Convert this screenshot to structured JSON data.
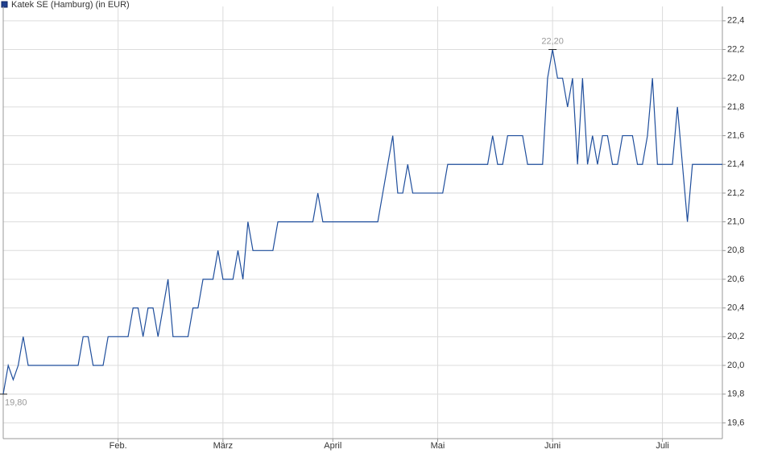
{
  "chart_data": {
    "type": "line",
    "title": "Katek SE (Hamburg) (in EUR)",
    "categories": [
      null,
      null,
      null,
      null,
      null,
      null,
      null,
      null,
      null,
      null,
      null,
      null,
      null,
      null,
      null,
      null,
      null,
      null,
      null,
      null,
      null,
      null,
      null,
      "Feb.",
      null,
      null,
      null,
      null,
      null,
      null,
      null,
      null,
      null,
      null,
      null,
      null,
      null,
      null,
      null,
      null,
      null,
      null,
      null,
      null,
      "März",
      null,
      null,
      null,
      null,
      null,
      null,
      null,
      null,
      null,
      null,
      null,
      null,
      null,
      null,
      null,
      null,
      null,
      null,
      null,
      null,
      null,
      "April",
      null,
      null,
      null,
      null,
      null,
      null,
      null,
      null,
      null,
      null,
      null,
      null,
      null,
      null,
      null,
      null,
      null,
      null,
      null,
      null,
      "Mai",
      null,
      null,
      null,
      null,
      null,
      null,
      null,
      null,
      null,
      null,
      null,
      null,
      null,
      null,
      null,
      null,
      null,
      null,
      null,
      null,
      null,
      null,
      "Juni",
      null,
      null,
      null,
      null,
      null,
      null,
      null,
      null,
      null,
      null,
      null,
      null,
      null,
      null,
      null,
      null,
      null,
      null,
      null,
      null,
      null,
      "Juli",
      null,
      null,
      null,
      null,
      null,
      null,
      null,
      null,
      null,
      null,
      null,
      null
    ],
    "series": [
      {
        "name": "Katek SE (Hamburg)",
        "color": "#1f4e9c",
        "values": [
          19.8,
          20.0,
          19.9,
          20.0,
          20.2,
          20.0,
          20.0,
          20.0,
          20.0,
          20.0,
          20.0,
          20.0,
          20.0,
          20.0,
          20.0,
          20.0,
          20.2,
          20.2,
          20.0,
          20.0,
          20.0,
          20.2,
          20.2,
          20.2,
          20.2,
          20.2,
          20.4,
          20.4,
          20.2,
          20.4,
          20.4,
          20.2,
          20.4,
          20.6,
          20.2,
          20.2,
          20.2,
          20.2,
          20.4,
          20.4,
          20.6,
          20.6,
          20.6,
          20.8,
          20.6,
          20.6,
          20.6,
          20.8,
          20.6,
          21.0,
          20.8,
          20.8,
          20.8,
          20.8,
          20.8,
          21.0,
          21.0,
          21.0,
          21.0,
          21.0,
          21.0,
          21.0,
          21.0,
          21.2,
          21.0,
          21.0,
          21.0,
          21.0,
          21.0,
          21.0,
          21.0,
          21.0,
          21.0,
          21.0,
          21.0,
          21.0,
          21.2,
          21.4,
          21.6,
          21.2,
          21.2,
          21.4,
          21.2,
          21.2,
          21.2,
          21.2,
          21.2,
          21.2,
          21.2,
          21.4,
          21.4,
          21.4,
          21.4,
          21.4,
          21.4,
          21.4,
          21.4,
          21.4,
          21.6,
          21.4,
          21.4,
          21.6,
          21.6,
          21.6,
          21.6,
          21.4,
          21.4,
          21.4,
          21.4,
          22.0,
          22.2,
          22.0,
          22.0,
          21.8,
          22.0,
          21.4,
          22.0,
          21.4,
          21.6,
          21.4,
          21.6,
          21.6,
          21.4,
          21.4,
          21.6,
          21.6,
          21.6,
          21.4,
          21.4,
          21.6,
          22.0,
          21.4,
          21.4,
          21.4,
          21.4,
          21.8,
          21.4,
          21.0,
          21.4,
          21.4,
          21.4,
          21.4,
          21.4,
          21.4,
          21.4
        ],
        "value_labels": [
          "19,80",
          null,
          null,
          null,
          null,
          null,
          null,
          null,
          null,
          null,
          null,
          null,
          null,
          null,
          null,
          null,
          null,
          null,
          null,
          null,
          null,
          null,
          null,
          null,
          null,
          null,
          null,
          null,
          null,
          null,
          null,
          null,
          null,
          null,
          null,
          null,
          null,
          null,
          null,
          null,
          null,
          null,
          null,
          null,
          null,
          null,
          null,
          null,
          null,
          null,
          null,
          null,
          null,
          null,
          null,
          null,
          null,
          null,
          null,
          null,
          null,
          null,
          null,
          null,
          null,
          null,
          null,
          null,
          null,
          null,
          null,
          null,
          null,
          null,
          null,
          null,
          null,
          null,
          null,
          null,
          null,
          null,
          null,
          null,
          null,
          null,
          null,
          null,
          null,
          null,
          null,
          null,
          null,
          null,
          null,
          null,
          null,
          null,
          null,
          null,
          null,
          null,
          null,
          null,
          null,
          null,
          null,
          null,
          null,
          null,
          "22,20",
          null,
          null,
          null,
          null,
          null,
          null,
          null,
          null,
          null,
          null,
          null,
          null,
          null,
          null,
          null,
          null,
          null,
          null,
          null,
          null,
          null,
          null,
          null,
          null,
          null,
          null,
          null,
          null,
          null,
          null,
          null,
          null,
          null
        ]
      }
    ],
    "ylim": [
      19.49,
      22.5
    ],
    "yticks": [
      {
        "value": 19.6,
        "label": "19,6"
      },
      {
        "value": 19.8,
        "label": "19,8"
      },
      {
        "value": 20.0,
        "label": "20,0"
      },
      {
        "value": 20.2,
        "label": "20,2"
      },
      {
        "value": 20.4,
        "label": "20,4"
      },
      {
        "value": 20.6,
        "label": "20,6"
      },
      {
        "value": 20.8,
        "label": "20,8"
      },
      {
        "value": 21.0,
        "label": "21,0"
      },
      {
        "value": 21.2,
        "label": "21,2"
      },
      {
        "value": 21.4,
        "label": "21,4"
      },
      {
        "value": 21.6,
        "label": "21,6"
      },
      {
        "value": 21.8,
        "label": "21,8"
      },
      {
        "value": 22.0,
        "label": "22,0"
      },
      {
        "value": 22.2,
        "label": "22,2"
      },
      {
        "value": 22.4,
        "label": "22,4"
      }
    ],
    "grid": true
  }
}
